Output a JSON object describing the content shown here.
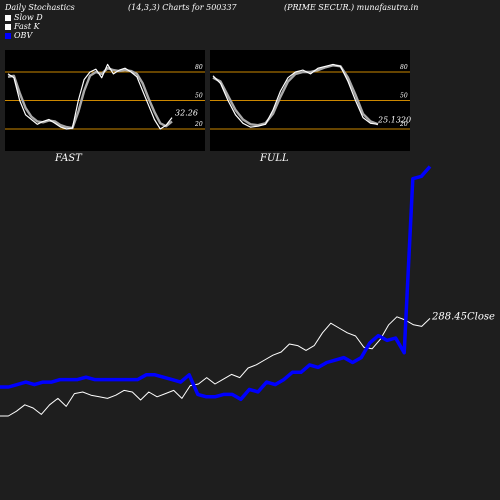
{
  "header": {
    "title": "Daily Stochastics",
    "params": "(14,3,3) Charts for 500337",
    "company": "(PRIME SECUR.) munafasutra.in"
  },
  "legend": [
    {
      "label": "Slow  D",
      "color": "#ffffff"
    },
    {
      "label": "Fast K",
      "color": "#ffffff"
    },
    {
      "label": "OBV",
      "color": "#0000ff"
    }
  ],
  "panels": [
    {
      "label": "FAST",
      "last_value_text": "32.26"
    },
    {
      "label": "FULL",
      "last_value_text": "25.1320"
    }
  ],
  "close_label": "288.45Close",
  "colors": {
    "background": "#1e1e1e",
    "panel_bg": "#000000",
    "band": "#cc8800",
    "obv": "#0000ff",
    "price": "#ffffff"
  },
  "chart_data": [
    {
      "type": "line",
      "title": "FAST",
      "ylim": [
        0,
        100
      ],
      "yticks": [
        20,
        50,
        80
      ],
      "bands": [
        20,
        50,
        80
      ],
      "series": [
        {
          "name": "Fast K",
          "values": [
            78,
            74,
            50,
            35,
            30,
            25,
            28,
            30,
            26,
            22,
            20,
            21,
            50,
            72,
            80,
            83,
            74,
            88,
            78,
            82,
            84,
            80,
            75,
            60,
            45,
            30,
            20,
            24,
            32
          ]
        },
        {
          "name": "Slow  D",
          "values": [
            75,
            76,
            58,
            42,
            33,
            28,
            27,
            29,
            28,
            24,
            22,
            21,
            38,
            60,
            76,
            80,
            78,
            84,
            82,
            81,
            82,
            81,
            78,
            68,
            52,
            38,
            26,
            23,
            28
          ]
        }
      ]
    },
    {
      "type": "line",
      "title": "FULL",
      "ylim": [
        0,
        100
      ],
      "yticks": [
        20,
        50,
        80
      ],
      "bands": [
        20,
        50,
        80
      ],
      "series": [
        {
          "name": "Fast K",
          "values": [
            76,
            68,
            50,
            35,
            26,
            22,
            23,
            25,
            40,
            60,
            74,
            80,
            82,
            78,
            84,
            86,
            88,
            86,
            70,
            50,
            32,
            26,
            25
          ]
        },
        {
          "name": "Slow  D",
          "values": [
            74,
            70,
            55,
            40,
            30,
            25,
            24,
            26,
            36,
            54,
            70,
            78,
            80,
            80,
            82,
            85,
            87,
            86,
            74,
            56,
            36,
            28,
            25
          ]
        }
      ]
    },
    {
      "type": "line",
      "title": "",
      "series": [
        {
          "name": "OBV",
          "values": [
            0,
            0,
            1,
            2,
            1,
            2,
            2,
            3,
            3,
            3,
            4,
            3,
            3,
            3,
            3,
            3,
            3,
            5,
            5,
            4,
            3,
            2,
            5,
            -3,
            -4,
            -4,
            -3,
            -3,
            -5,
            -1,
            -2,
            2,
            1,
            3,
            6,
            6,
            9,
            8,
            10,
            11,
            12,
            10,
            12,
            18,
            21,
            19,
            20,
            14,
            85,
            86,
            90
          ]
        },
        {
          "name": "Close",
          "values": [
            -10,
            -10,
            -7,
            -3,
            -5,
            -9,
            -3,
            1,
            -4,
            4,
            5,
            3,
            2,
            1,
            3,
            6,
            5,
            0,
            5,
            2,
            4,
            6,
            1,
            9,
            10,
            14,
            10,
            13,
            16,
            14,
            20,
            22,
            25,
            28,
            30,
            35,
            34,
            31,
            34,
            42,
            48,
            45,
            42,
            40,
            33,
            32,
            38,
            47,
            52,
            50,
            47,
            46,
            51
          ]
        }
      ]
    }
  ]
}
